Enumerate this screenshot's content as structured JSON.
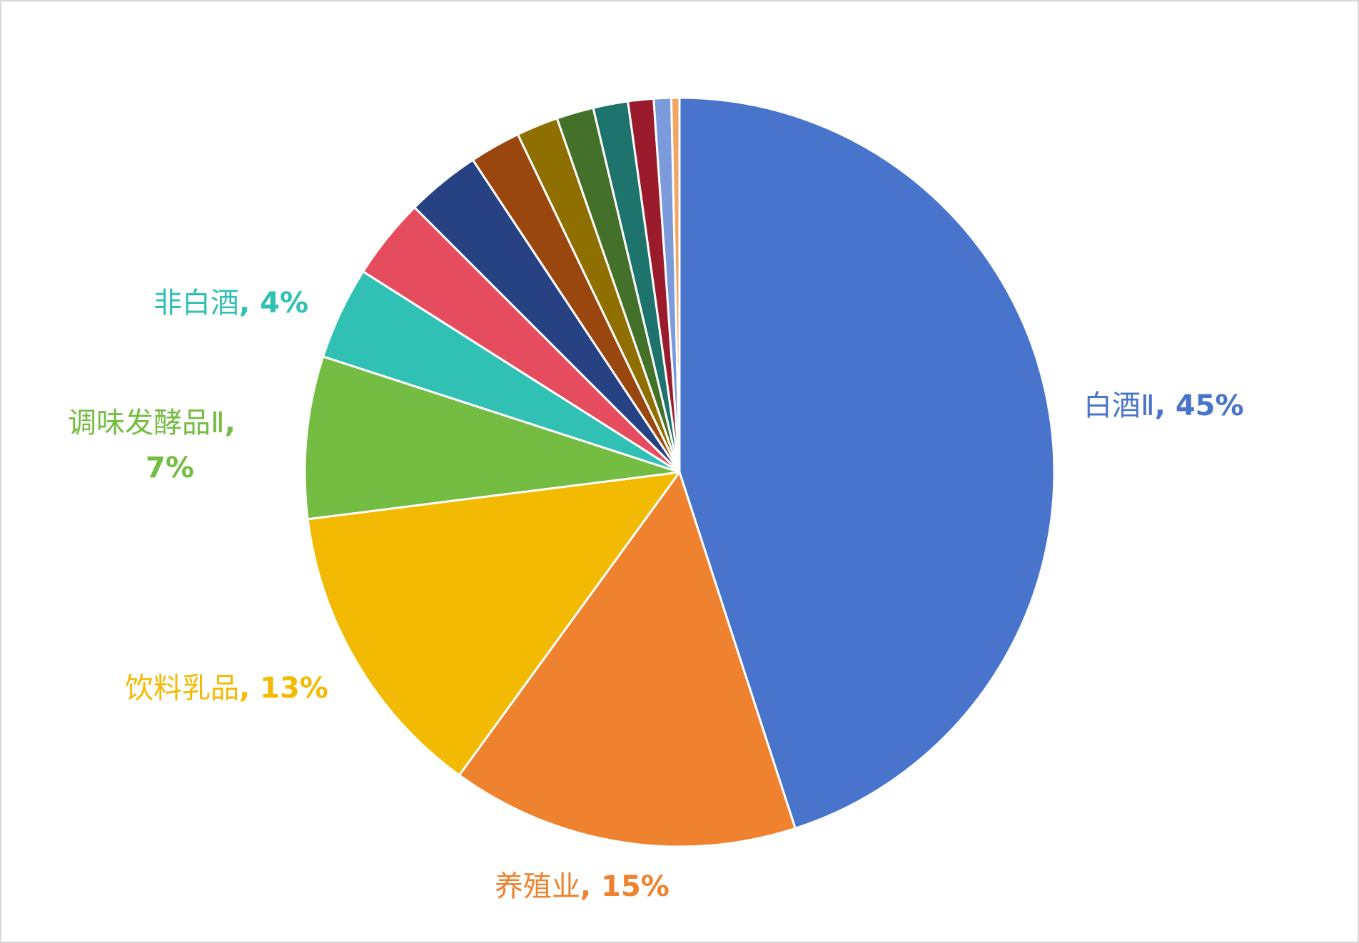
{
  "chart_data": {
    "type": "pie",
    "title": "",
    "start_angle_deg": 0,
    "direction": "clockwise",
    "slices": [
      {
        "label": "白酒Ⅱ",
        "value": 45,
        "color": "#4874CB",
        "show_label": true,
        "label_text": "白酒Ⅱ",
        "pct_text": "45%"
      },
      {
        "label": "养殖业",
        "value": 15,
        "color": "#EE822F",
        "show_label": true,
        "label_text": "养殖业",
        "pct_text": "15%"
      },
      {
        "label": "饮料乳品",
        "value": 13,
        "color": "#F2BA02",
        "show_label": true,
        "label_text": "饮料乳品",
        "pct_text": "13%"
      },
      {
        "label": "调味发酵品Ⅱ",
        "value": 7,
        "color": "#75BD42",
        "show_label": true,
        "label_text": "调味发酵品Ⅱ",
        "pct_text": "7%"
      },
      {
        "label": "非白酒",
        "value": 4,
        "color": "#30C0B4",
        "show_label": true,
        "label_text": "非白酒",
        "pct_text": "4%"
      },
      {
        "label": "",
        "value": 3.5,
        "color": "#E54C5E",
        "show_label": false
      },
      {
        "label": "",
        "value": 3.2,
        "color": "#264283",
        "show_label": false
      },
      {
        "label": "",
        "value": 2.2,
        "color": "#9A470F",
        "show_label": false
      },
      {
        "label": "",
        "value": 1.8,
        "color": "#8E6F00",
        "show_label": false
      },
      {
        "label": "",
        "value": 1.6,
        "color": "#44712A",
        "show_label": false
      },
      {
        "label": "",
        "value": 1.5,
        "color": "#1E746C",
        "show_label": false
      },
      {
        "label": "",
        "value": 1.1,
        "color": "#9A1B2C",
        "show_label": false
      },
      {
        "label": "",
        "value": 0.75,
        "color": "#7C9BDC",
        "show_label": false
      },
      {
        "label": "",
        "value": 0.35,
        "color": "#F2A663",
        "show_label": false
      }
    ]
  }
}
